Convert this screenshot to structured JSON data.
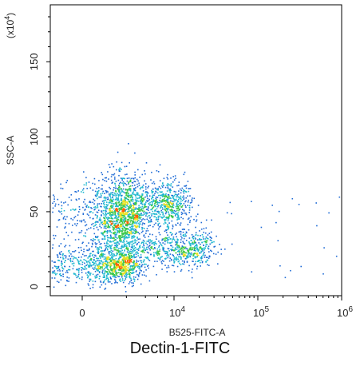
{
  "chart_data": {
    "type": "scatter",
    "style": "flow-cytometry density dot plot",
    "title": "Dectin-1-FITC",
    "xlabel": "B525-FITC-A",
    "ylabel": "SSC-A",
    "y_multiplier_label": "(x10",
    "y_multiplier_exp": "4",
    "y_multiplier_close": ")",
    "x_scale": "biexponential",
    "x_ticks": [
      {
        "label": "0",
        "exp": "",
        "value": 0
      },
      {
        "label": "10",
        "exp": "4",
        "value": 10000
      },
      {
        "label": "10",
        "exp": "5",
        "value": 100000
      },
      {
        "label": "10",
        "exp": "6",
        "value": 1000000
      }
    ],
    "y_ticks": [
      {
        "label": "0",
        "value": 0
      },
      {
        "label": "50",
        "value": 50
      },
      {
        "label": "100",
        "value": 100
      },
      {
        "label": "150",
        "value": 150
      }
    ],
    "ylim": [
      -6,
      188
    ],
    "grid": false,
    "density_colors": [
      "#0000cc",
      "#1f6bd6",
      "#20b8d0",
      "#3cc84a",
      "#e8e020",
      "#ff6000"
    ],
    "populations": [
      {
        "name": "main-low",
        "x_center": 1000,
        "y_center": 14,
        "x_spread": 1200,
        "y_spread": 6,
        "count": 900
      },
      {
        "name": "column",
        "x_center": 1500,
        "y_center": 45,
        "x_spread": 900,
        "y_spread": 14,
        "count": 1300
      },
      {
        "name": "upper-cloud",
        "x_center": 5000,
        "y_center": 55,
        "x_spread": 5000,
        "y_spread": 9,
        "count": 1000
      },
      {
        "name": "mid-band",
        "x_center": 10000,
        "y_center": 25,
        "x_spread": 9000,
        "y_spread": 6,
        "count": 700
      }
    ]
  }
}
